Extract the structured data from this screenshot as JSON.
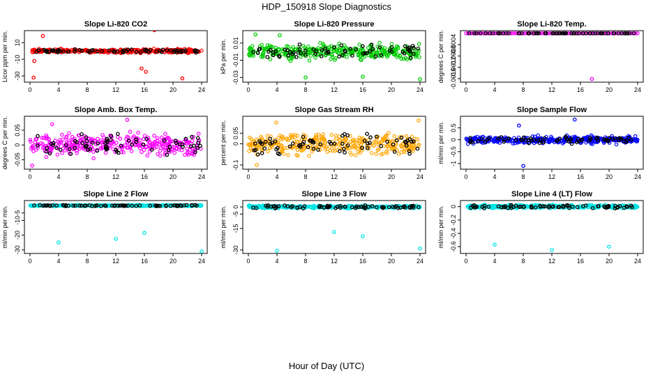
{
  "figure": {
    "title": "HDP_150918  Slope Diagnostics",
    "xlabel": "Hour of Day (UTC)"
  },
  "chart_data": [
    {
      "type": "scatter",
      "title": "Slope Li-820 CO2",
      "ylabel": "Licor ppm per min.",
      "color": "#ff0000",
      "xlim": [
        0,
        24
      ],
      "ylim": [
        -35,
        22
      ],
      "xticks": [
        0,
        4,
        8,
        12,
        16,
        20,
        24
      ],
      "yticks": [
        -30,
        -10,
        10
      ],
      "baseline": 0,
      "spread": 3,
      "outliers": [
        [
          1.8,
          18
        ],
        [
          0.6,
          -12
        ],
        [
          15.6,
          -21
        ],
        [
          16.2,
          -25
        ],
        [
          17.4,
          25
        ],
        [
          21.3,
          -33
        ],
        [
          0.5,
          -32
        ]
      ]
    },
    {
      "type": "scatter",
      "title": "Slope Li-820 Pressure",
      "ylabel": "kPa per min.",
      "color": "#00cc00",
      "xlim": [
        0,
        24
      ],
      "ylim": [
        -0.033,
        0.022
      ],
      "xticks": [
        0,
        4,
        8,
        12,
        16,
        20,
        24
      ],
      "yticks": [
        -0.03,
        -0.01,
        0.01
      ],
      "baseline": 0,
      "spread": 0.012,
      "outliers": [
        [
          8,
          -0.03
        ],
        [
          16,
          -0.029
        ],
        [
          24,
          -0.032
        ],
        [
          1,
          0.02
        ],
        [
          4.4,
          0.019
        ]
      ]
    },
    {
      "type": "scatter",
      "title": "Slope Li-820 Temp.",
      "ylabel": "degrees C per min.",
      "color": "#ff00ff",
      "xlim": [
        0,
        24
      ],
      "ylim": [
        -0.00165,
        2e-05
      ],
      "xticks": [
        0,
        4,
        8,
        12,
        16,
        20,
        24
      ],
      "yticks": [
        -0.0016,
        -0.0012,
        -0.0008,
        -0.0004
      ],
      "baseline": 0,
      "spread": 0,
      "outliers": [
        [
          17.6,
          -0.00161
        ]
      ]
    },
    {
      "type": "scatter",
      "title": "Slope Amb. Box Temp.",
      "ylabel": "degrees C per min.",
      "color": "#ff00ff",
      "xlim": [
        0,
        24
      ],
      "ylim": [
        -0.075,
        0.09
      ],
      "xticks": [
        0,
        4,
        8,
        12,
        16,
        20,
        24
      ],
      "yticks": [
        -0.05,
        0,
        0.05
      ],
      "baseline": 0,
      "spread": 0.05,
      "outliers": [
        [
          13.6,
          0.085
        ],
        [
          3.1,
          0.07
        ],
        [
          0.3,
          -0.07
        ]
      ]
    },
    {
      "type": "scatter",
      "title": "Slope Gas Stream RH",
      "ylabel": "percent per min.",
      "color": "#ffa500",
      "xlim": [
        0,
        24
      ],
      "ylim": [
        -0.11,
        0.12
      ],
      "xticks": [
        0,
        4,
        8,
        12,
        16,
        20,
        24
      ],
      "yticks": [
        -0.1,
        0,
        0.05
      ],
      "baseline": 0,
      "spread": 0.07,
      "outliers": [
        [
          1.2,
          -0.1
        ],
        [
          3.9,
          0.1
        ],
        [
          23.8,
          0.11
        ]
      ]
    },
    {
      "type": "scatter",
      "title": "Slope Sample Flow",
      "ylabel": "ml/min per min.",
      "color": "#0000ff",
      "xlim": [
        0,
        24
      ],
      "ylim": [
        -1.15,
        0.9
      ],
      "xticks": [
        0,
        4,
        8,
        12,
        16,
        20,
        24
      ],
      "yticks": [
        -1,
        -0.5,
        0,
        0.5
      ],
      "baseline": 0,
      "spread": 0.22,
      "outliers": [
        [
          8,
          -1.1
        ],
        [
          15.2,
          0.85
        ],
        [
          7.4,
          0.6
        ]
      ]
    },
    {
      "type": "scatter",
      "title": "Slope Line 2 Flow",
      "ylabel": "ml/min per min.",
      "color": "#00e5e5",
      "xlim": [
        0,
        24
      ],
      "ylim": [
        -31,
        2
      ],
      "xticks": [
        0,
        4,
        8,
        12,
        16,
        20,
        24
      ],
      "yticks": [
        -30,
        -20,
        -10,
        -5
      ],
      "baseline": 0,
      "spread": 0.6,
      "outliers": [
        [
          4,
          -25
        ],
        [
          12,
          -22.5
        ],
        [
          16,
          -18.5
        ],
        [
          24,
          -31
        ]
      ]
    },
    {
      "type": "scatter",
      "title": "Slope Line 3 Flow",
      "ylabel": "ml/min per min.",
      "color": "#00e5e5",
      "xlim": [
        0,
        24
      ],
      "ylim": [
        -31,
        3
      ],
      "xticks": [
        0,
        4,
        8,
        12,
        16,
        20,
        24
      ],
      "yticks": [
        -30,
        -15,
        -5,
        0
      ],
      "baseline": 0,
      "spread": 1.5,
      "outliers": [
        [
          4,
          -30.5
        ],
        [
          12,
          -17.5
        ],
        [
          16,
          -20.5
        ],
        [
          24,
          -29
        ]
      ]
    },
    {
      "type": "scatter",
      "title": "Slope Line 4 (LT) Flow",
      "ylabel": "ml/min per min.",
      "color": "#00e5e5",
      "xlim": [
        0,
        24
      ],
      "ylim": [
        -0.67,
        0.06
      ],
      "xticks": [
        0,
        4,
        8,
        12,
        16,
        20,
        24
      ],
      "yticks": [
        -0.6,
        -0.4,
        -0.2,
        0
      ],
      "baseline": 0,
      "spread": 0.035,
      "outliers": [
        [
          4,
          -0.57
        ],
        [
          12,
          -0.65
        ],
        [
          20,
          -0.6
        ]
      ]
    }
  ]
}
